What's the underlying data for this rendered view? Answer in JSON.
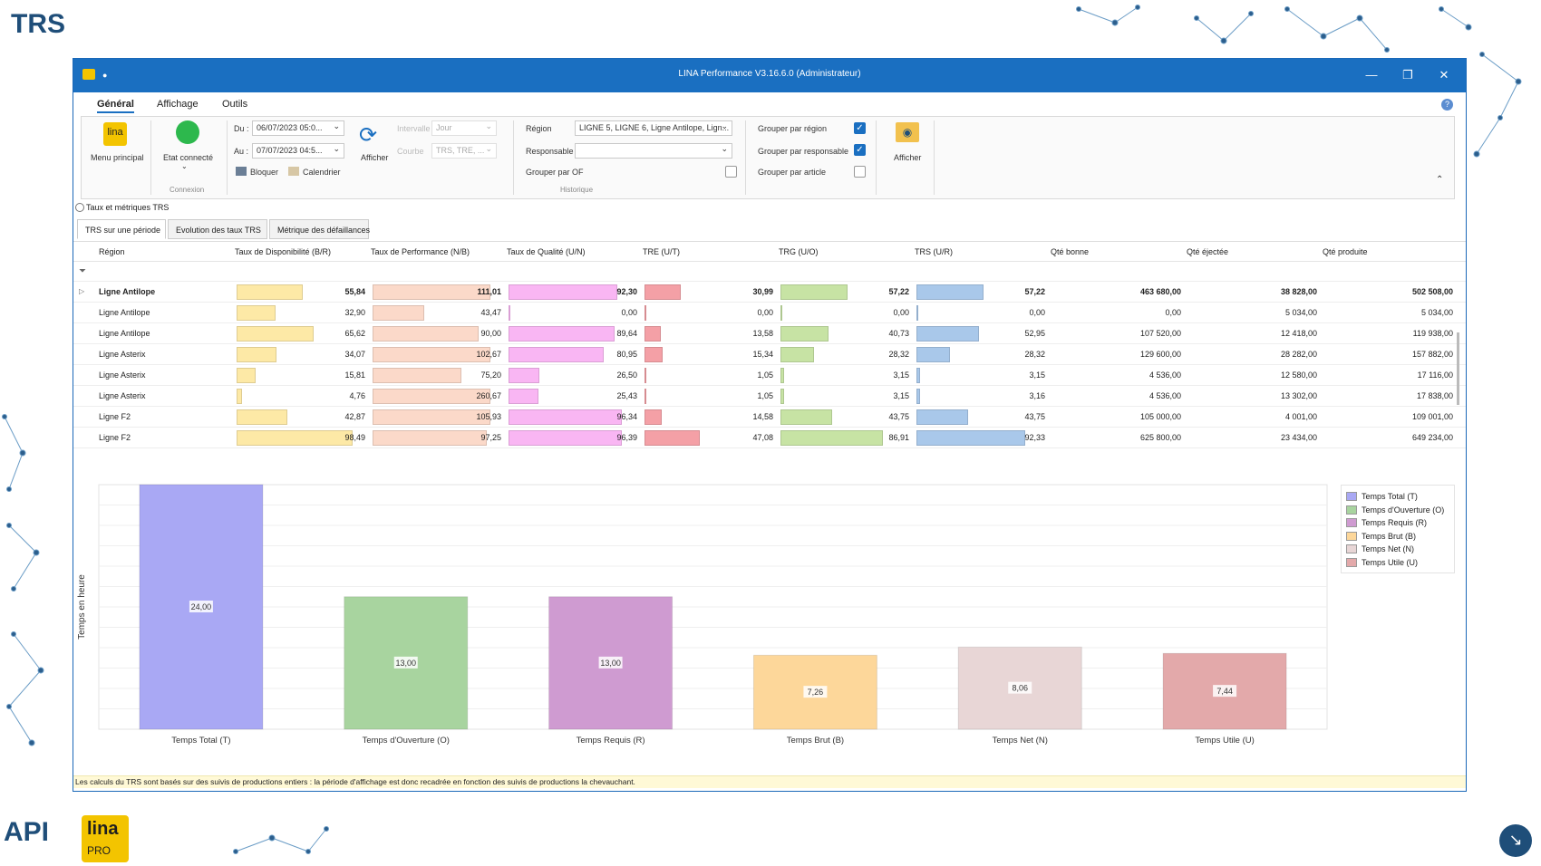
{
  "slide_title": "TRS",
  "window": {
    "title": "LINA Performance  V3.16.6.0  (Administrateur)"
  },
  "ribbon_tabs": [
    "Général",
    "Affichage",
    "Outils"
  ],
  "ribbon": {
    "menu_label": "Menu principal",
    "logo_text": "lina",
    "etat_label": "Etat connecté",
    "connexion_label": "Connexion",
    "du_label": "Du :",
    "du_value": "06/07/2023 05:0...",
    "au_label": "Au :",
    "au_value": "07/07/2023 04:5...",
    "afficher_label": "Afficher",
    "intervalle_label": "Intervalle",
    "intervalle_value": "Jour",
    "courbe_label": "Courbe",
    "courbe_value": "TRS, TRE, ...",
    "bloquer_label": "Bloquer",
    "calendrier_label": "Calendrier",
    "region_label": "Région",
    "region_value": "LIGNE 5, LIGNE 6, Ligne Antilope, Lign...",
    "responsable_label": "Responsable",
    "responsable_value": "",
    "grouper_of_label": "Grouper par OF",
    "historique_label": "Historique",
    "grouper_region_label": "Grouper par région",
    "grouper_responsable_label": "Grouper par responsable",
    "grouper_article_label": "Grouper par article",
    "afficher2_label": "Afficher"
  },
  "subheader": "Taux et métriques TRS",
  "view_tabs": [
    "TRS sur une période",
    "Evolution des taux TRS",
    "Métrique des défaillances"
  ],
  "grid": {
    "columns": [
      "Région",
      "Taux de Disponibilité (B/R)",
      "Taux de Performance (N/B)",
      "Taux de Qualité (U/N)",
      "TRE (U/T)",
      "TRG (U/O)",
      "TRS (U/R)",
      "Qté bonne",
      "Qté éjectée",
      "Qté produite"
    ],
    "rows": [
      {
        "region": "Ligne Antilope",
        "bold": true,
        "vals": [
          "55,84",
          "111,01",
          "92,30",
          "30,99",
          "57,22",
          "57,22",
          "463 680,00",
          "38 828,00",
          "502 508,00"
        ],
        "pct": [
          55.84,
          111.01,
          92.3,
          30.99,
          57.22,
          57.22
        ]
      },
      {
        "region": "Ligne Antilope",
        "vals": [
          "32,90",
          "43,47",
          "0,00",
          "0,00",
          "0,00",
          "0,00",
          "0,00",
          "5 034,00",
          "5 034,00"
        ],
        "pct": [
          32.9,
          43.47,
          0,
          0,
          0,
          0
        ]
      },
      {
        "region": "Ligne Antilope",
        "vals": [
          "65,62",
          "90,00",
          "89,64",
          "13,58",
          "40,73",
          "52,95",
          "107 520,00",
          "12 418,00",
          "119 938,00"
        ],
        "pct": [
          65.62,
          90.0,
          89.64,
          13.58,
          40.73,
          52.95
        ]
      },
      {
        "region": "Ligne Asterix",
        "vals": [
          "34,07",
          "102,67",
          "80,95",
          "15,34",
          "28,32",
          "28,32",
          "129 600,00",
          "28 282,00",
          "157 882,00"
        ],
        "pct": [
          34.07,
          102.67,
          80.95,
          15.34,
          28.32,
          28.32
        ]
      },
      {
        "region": "Ligne Asterix",
        "vals": [
          "15,81",
          "75,20",
          "26,50",
          "1,05",
          "3,15",
          "3,15",
          "4 536,00",
          "12 580,00",
          "17 116,00"
        ],
        "pct": [
          15.81,
          75.2,
          26.5,
          1.05,
          3.15,
          3.15
        ]
      },
      {
        "region": "Ligne Asterix",
        "vals": [
          "4,76",
          "260,67",
          "25,43",
          "1,05",
          "3,15",
          "3,16",
          "4 536,00",
          "13 302,00",
          "17 838,00"
        ],
        "pct": [
          4.76,
          260.67,
          25.43,
          1.05,
          3.15,
          3.16
        ]
      },
      {
        "region": "Ligne F2",
        "vals": [
          "42,87",
          "105,93",
          "96,34",
          "14,58",
          "43,75",
          "43,75",
          "105 000,00",
          "4 001,00",
          "109 001,00"
        ],
        "pct": [
          42.87,
          105.93,
          96.34,
          14.58,
          43.75,
          43.75
        ]
      },
      {
        "region": "Ligne F2",
        "vals": [
          "98,49",
          "97,25",
          "96,39",
          "47,08",
          "86,91",
          "92,33",
          "625 800,00",
          "23 434,00",
          "649 234,00"
        ],
        "pct": [
          98.49,
          97.25,
          96.39,
          47.08,
          86.91,
          92.33
        ]
      }
    ]
  },
  "colors": {
    "dispo": "#fde9a6",
    "perf": "#fbd9c9",
    "qual": "#f9b6f3",
    "tre": "#f4a0a6",
    "trg": "#c7e3a4",
    "trs": "#a9c8ea",
    "titlebar": "#1a6fc1"
  },
  "chart_data": {
    "type": "bar",
    "categories": [
      "Temps Total (T)",
      "Temps d'Ouverture (O)",
      "Temps Requis (R)",
      "Temps Brut (B)",
      "Temps Net (N)",
      "Temps Utile (U)"
    ],
    "values": [
      24.0,
      13.0,
      13.0,
      7.26,
      8.06,
      7.44
    ],
    "labels": [
      "24,00",
      "13,00",
      "13,00",
      "7,26",
      "8,06",
      "7,44"
    ],
    "colors": [
      "#a9a8f4",
      "#a8d49f",
      "#cf9bd1",
      "#fdd79a",
      "#e8d6d6",
      "#e3a9aa"
    ],
    "ylabel": "Temps en heure",
    "ylim": [
      0,
      24
    ],
    "legend": "top-right",
    "grid": true
  },
  "footer": "Les calculs du TRS sont basés sur des suivis de productions entiers : la période d'affichage est donc recadrée en fonction des suivis de productions la chevauchant.",
  "logos": {
    "api": "API",
    "lina": "lina",
    "pro": "PRO"
  }
}
